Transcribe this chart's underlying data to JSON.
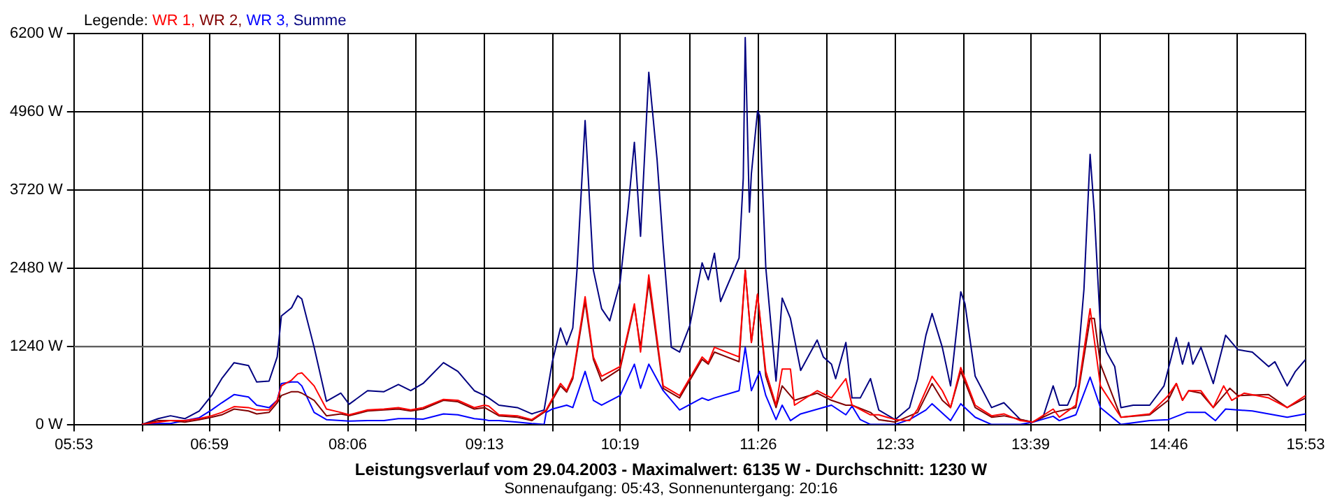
{
  "chart_data": {
    "type": "line",
    "title": "Leistungsverlauf vom 29.04.2003 - Maximalwert: 6135 W - Durchschnitt: 1230 W",
    "subtitle": "Sonnenaufgang: 05:43, Sonnenuntergang: 20:16",
    "legend_title": "Legende:",
    "legend": "top left",
    "grid": true,
    "marker": "none",
    "line_style": "solid",
    "xlim": [
      5.883,
      15.883
    ],
    "xticks": [
      {
        "value": 5.883,
        "label": "05:53"
      },
      {
        "value": 6.439,
        "label": null
      },
      {
        "value": 6.983,
        "label": "06:59"
      },
      {
        "value": 7.55,
        "label": null
      },
      {
        "value": 8.106,
        "label": "08:06"
      },
      {
        "value": 8.661,
        "label": null
      },
      {
        "value": 9.217,
        "label": "09:13"
      },
      {
        "value": 9.772,
        "label": null
      },
      {
        "value": 10.317,
        "label": "10:19"
      },
      {
        "value": 10.883,
        "label": null
      },
      {
        "value": 11.439,
        "label": "11:26"
      },
      {
        "value": 11.994,
        "label": null
      },
      {
        "value": 12.55,
        "label": "12:33"
      },
      {
        "value": 13.106,
        "label": null
      },
      {
        "value": 13.65,
        "label": "13:39"
      },
      {
        "value": 14.217,
        "label": null
      },
      {
        "value": 14.772,
        "label": "14:46"
      },
      {
        "value": 15.328,
        "label": null
      },
      {
        "value": 15.883,
        "label": "15:53"
      }
    ],
    "ylim": [
      0,
      6200
    ],
    "yticks": [
      {
        "value": 0,
        "label": "0 W"
      },
      {
        "value": 1240,
        "label": "1240 W"
      },
      {
        "value": 2480,
        "label": "2480 W"
      },
      {
        "value": 3720,
        "label": "3720 W"
      },
      {
        "value": 4960,
        "label": "4960 W"
      },
      {
        "value": 6200,
        "label": "6200 W"
      }
    ],
    "ref_lines": [
      {
        "axis": "y",
        "value": 1230,
        "color": "#808080"
      }
    ],
    "series": [
      {
        "name": "WR 1,",
        "color": "#ff0000",
        "x": [
          6.433,
          6.567,
          6.667,
          6.783,
          6.9,
          7.0,
          7.083,
          7.183,
          7.3,
          7.367,
          7.467,
          7.533,
          7.567,
          7.65,
          7.7,
          7.733,
          7.833,
          7.933,
          8.05,
          8.117,
          8.267,
          8.4,
          8.517,
          8.617,
          8.717,
          8.883,
          9.0,
          9.133,
          9.217,
          9.25,
          9.333,
          9.483,
          9.6,
          9.717,
          9.833,
          9.883,
          9.933,
          10.033,
          10.1,
          10.167,
          10.317,
          10.433,
          10.483,
          10.55,
          10.667,
          10.8,
          10.983,
          11.033,
          11.083,
          11.283,
          11.333,
          11.383,
          11.433,
          11.5,
          11.583,
          11.633,
          11.7,
          11.733,
          11.917,
          12.033,
          12.15,
          12.2,
          12.35,
          12.417,
          12.55,
          12.667,
          12.733,
          12.85,
          12.933,
          13.0,
          13.083,
          13.2,
          13.333,
          13.433,
          13.567,
          13.667,
          13.833,
          13.883,
          14.017,
          14.133,
          14.217,
          14.383,
          14.617,
          14.767,
          14.833,
          14.883,
          14.933,
          15.033,
          15.133,
          15.217,
          15.283,
          15.383,
          15.583,
          15.733,
          15.883
        ],
        "values": [
          0,
          38,
          61,
          61,
          92,
          138,
          191,
          283,
          268,
          230,
          230,
          383,
          612,
          704,
          803,
          819,
          612,
          245,
          191,
          153,
          230,
          245,
          268,
          230,
          268,
          398,
          383,
          268,
          306,
          291,
          153,
          138,
          77,
          230,
          650,
          536,
          765,
          2027,
          1071,
          765,
          918,
          1913,
          1148,
          2372,
          612,
          459,
          1071,
          979,
          1224,
          1071,
          2448,
          1301,
          2066,
          842,
          306,
          880,
          880,
          306,
          536,
          421,
          727,
          306,
          153,
          153,
          77,
          61,
          245,
          765,
          536,
          268,
          903,
          306,
          138,
          168,
          61,
          38,
          245,
          115,
          306,
          1836,
          612,
          115,
          168,
          459,
          650,
          383,
          536,
          536,
          268,
          612,
          383,
          497,
          421,
          268,
          459
        ]
      },
      {
        "name": "WR 2,",
        "color": "#800000",
        "x": [
          6.433,
          6.567,
          6.667,
          6.783,
          6.9,
          7.0,
          7.083,
          7.183,
          7.3,
          7.367,
          7.467,
          7.533,
          7.567,
          7.65,
          7.7,
          7.733,
          7.833,
          7.933,
          8.05,
          8.117,
          8.267,
          8.4,
          8.517,
          8.617,
          8.717,
          8.883,
          9.0,
          9.133,
          9.217,
          9.333,
          9.483,
          9.6,
          9.717,
          9.833,
          9.883,
          9.933,
          10.033,
          10.1,
          10.167,
          10.317,
          10.433,
          10.483,
          10.55,
          10.667,
          10.8,
          10.983,
          11.033,
          11.083,
          11.283,
          11.333,
          11.383,
          11.433,
          11.5,
          11.583,
          11.633,
          11.733,
          11.917,
          12.033,
          12.15,
          12.2,
          12.35,
          12.417,
          12.55,
          12.733,
          12.85,
          12.933,
          13.0,
          13.083,
          13.2,
          13.333,
          13.433,
          13.667,
          13.833,
          14.017,
          14.133,
          14.167,
          14.217,
          14.383,
          14.617,
          14.767,
          14.833,
          14.883,
          14.933,
          15.033,
          15.133,
          15.267,
          15.333,
          15.583,
          15.733,
          15.883
        ],
        "values": [
          0,
          61,
          61,
          38,
          77,
          115,
          153,
          245,
          214,
          168,
          191,
          344,
          459,
          520,
          520,
          497,
          383,
          138,
          168,
          138,
          214,
          230,
          245,
          214,
          245,
          383,
          360,
          245,
          268,
          138,
          115,
          61,
          214,
          612,
          513,
          727,
          1951,
          1033,
          689,
          880,
          1875,
          1224,
          2257,
          574,
          421,
          1033,
          956,
          1148,
          995,
          2448,
          1301,
          2066,
          765,
          268,
          612,
          383,
          497,
          383,
          306,
          306,
          191,
          77,
          38,
          191,
          650,
          383,
          268,
          842,
          268,
          115,
          138,
          38,
          191,
          268,
          1683,
          1683,
          956,
          115,
          153,
          383,
          650,
          383,
          536,
          497,
          268,
          574,
          459,
          474,
          268,
          421
        ]
      },
      {
        "name": "WR 3,",
        "color": "#0000ff",
        "x": [
          6.433,
          6.567,
          6.667,
          6.783,
          6.9,
          7.0,
          7.083,
          7.183,
          7.3,
          7.367,
          7.467,
          7.533,
          7.567,
          7.65,
          7.7,
          7.733,
          7.833,
          7.933,
          8.05,
          8.117,
          8.267,
          8.4,
          8.517,
          8.617,
          8.717,
          8.883,
          9.0,
          9.133,
          9.217,
          9.25,
          9.333,
          9.483,
          9.6,
          9.7,
          9.717,
          9.767,
          9.883,
          9.933,
          10.033,
          10.1,
          10.167,
          10.317,
          10.433,
          10.483,
          10.55,
          10.667,
          10.8,
          10.983,
          11.033,
          11.083,
          11.283,
          11.333,
          11.383,
          11.45,
          11.5,
          11.583,
          11.633,
          11.7,
          11.783,
          12.033,
          12.15,
          12.2,
          12.267,
          12.35,
          12.55,
          12.667,
          12.8,
          12.85,
          13.0,
          13.083,
          13.2,
          13.333,
          13.567,
          13.667,
          13.833,
          13.883,
          14.017,
          14.133,
          14.217,
          14.383,
          14.617,
          14.767,
          14.917,
          15.067,
          15.15,
          15.233,
          15.45,
          15.733,
          15.883
        ],
        "values": [
          0,
          15,
          15,
          61,
          107,
          230,
          344,
          474,
          436,
          306,
          268,
          383,
          650,
          673,
          673,
          612,
          191,
          77,
          61,
          54,
          61,
          61,
          92,
          92,
          84,
          168,
          153,
          92,
          77,
          61,
          61,
          38,
          15,
          0,
          191,
          245,
          306,
          268,
          842,
          383,
          306,
          459,
          956,
          574,
          956,
          536,
          230,
          421,
          383,
          421,
          536,
          1224,
          536,
          842,
          459,
          77,
          306,
          61,
          168,
          306,
          153,
          291,
          77,
          0,
          0,
          77,
          230,
          329,
          61,
          329,
          115,
          0,
          0,
          38,
          130,
          61,
          153,
          750,
          268,
          0,
          61,
          77,
          191,
          191,
          61,
          245,
          214,
          115,
          168
        ]
      },
      {
        "name": "Summe",
        "color": "#000080",
        "x": [
          6.433,
          6.567,
          6.667,
          6.783,
          6.9,
          7.0,
          7.083,
          7.183,
          7.3,
          7.367,
          7.467,
          7.533,
          7.567,
          7.65,
          7.7,
          7.733,
          7.833,
          7.933,
          8.05,
          8.117,
          8.267,
          8.4,
          8.517,
          8.617,
          8.717,
          8.883,
          9.0,
          9.133,
          9.217,
          9.25,
          9.333,
          9.483,
          9.6,
          9.7,
          9.767,
          9.833,
          9.883,
          9.933,
          9.967,
          10.033,
          10.1,
          10.167,
          10.233,
          10.317,
          10.383,
          10.433,
          10.483,
          10.55,
          10.617,
          10.667,
          10.733,
          10.8,
          10.883,
          10.983,
          11.033,
          11.083,
          11.133,
          11.283,
          11.317,
          11.333,
          11.367,
          11.383,
          11.433,
          11.45,
          11.5,
          11.583,
          11.633,
          11.7,
          11.783,
          11.917,
          11.967,
          12.033,
          12.067,
          12.15,
          12.2,
          12.267,
          12.35,
          12.417,
          12.55,
          12.667,
          12.733,
          12.8,
          12.85,
          12.933,
          13.0,
          13.083,
          13.117,
          13.2,
          13.333,
          13.433,
          13.567,
          13.667,
          13.75,
          13.833,
          13.883,
          13.95,
          14.017,
          14.083,
          14.133,
          14.167,
          14.217,
          14.267,
          14.333,
          14.383,
          14.483,
          14.617,
          14.733,
          14.783,
          14.833,
          14.883,
          14.933,
          14.967,
          15.033,
          15.133,
          15.233,
          15.333,
          15.45,
          15.583,
          15.633,
          15.733,
          15.8,
          15.883
        ],
        "values": [
          0,
          92,
          138,
          92,
          214,
          459,
          727,
          980,
          934,
          673,
          688,
          1071,
          1721,
          1851,
          2042,
          1989,
          1224,
          367,
          497,
          321,
          536,
          520,
          635,
          536,
          650,
          980,
          842,
          536,
          460,
          420,
          306,
          268,
          168,
          230,
          995,
          1530,
          1262,
          1530,
          2448,
          4820,
          2448,
          1836,
          1645,
          2257,
          3443,
          4475,
          2984,
          5585,
          4208,
          2831,
          1224,
          1148,
          1568,
          2563,
          2295,
          2716,
          1951,
          2639,
          3902,
          6135,
          3366,
          3978,
          4973,
          4896,
          2486,
          689,
          2004,
          1683,
          857,
          1339,
          1071,
          956,
          727,
          1301,
          421,
          421,
          727,
          230,
          77,
          268,
          727,
          1415,
          1760,
          1224,
          612,
          2104,
          1913,
          765,
          268,
          344,
          77,
          38,
          115,
          612,
          306,
          306,
          612,
          2142,
          4284,
          3366,
          1530,
          1148,
          918,
          268,
          306,
          306,
          612,
          995,
          1377,
          956,
          1301,
          956,
          1224,
          650,
          1415,
          1186,
          1148,
          918,
          995,
          612,
          842,
          1033
        ]
      }
    ]
  }
}
